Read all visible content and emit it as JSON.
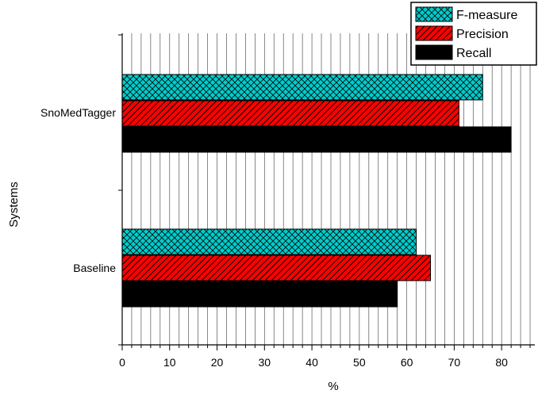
{
  "chart_data": {
    "type": "bar",
    "orientation": "horizontal",
    "categories": [
      "SnoMedTagger",
      "Baseline"
    ],
    "series": [
      {
        "name": "F-measure",
        "values": [
          76,
          62
        ],
        "color": "#00cccc",
        "pattern": "crosshatch"
      },
      {
        "name": "Precision",
        "values": [
          71,
          65
        ],
        "color": "#ff0000",
        "pattern": "diagonal"
      },
      {
        "name": "Recall",
        "values": [
          82,
          58
        ],
        "color": "#000000",
        "pattern": "solid"
      }
    ],
    "xlabel": "%",
    "ylabel": "Systems",
    "xlim": [
      0,
      87
    ],
    "xticks": [
      0,
      10,
      20,
      30,
      40,
      50,
      60,
      70,
      80
    ],
    "grid": "vertical every 2",
    "legend": "top-right"
  }
}
